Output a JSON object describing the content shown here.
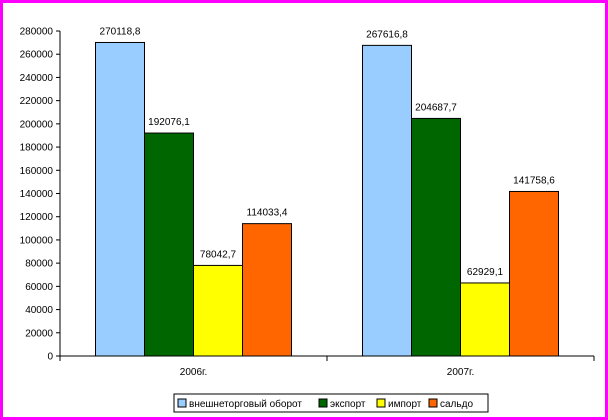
{
  "chart_data": {
    "type": "bar",
    "categories": [
      "2006г.",
      "2007г."
    ],
    "series": [
      {
        "name": "внешнеторговый оборот",
        "values": [
          270118.8,
          267616.8
        ],
        "labels": [
          "270118,8",
          "267616,8"
        ],
        "color": "#99ccff"
      },
      {
        "name": "экспорт",
        "values": [
          192076.1,
          204687.7
        ],
        "labels": [
          "192076,1",
          "204687,7"
        ],
        "color": "#006600"
      },
      {
        "name": "импорт",
        "values": [
          78042.7,
          62929.1
        ],
        "labels": [
          "78042,7",
          "62929,1"
        ],
        "color": "#ffff00"
      },
      {
        "name": "сальдо",
        "values": [
          114033.4,
          141758.6
        ],
        "labels": [
          "114033,4",
          "141758,6"
        ],
        "color": "#ff6600"
      }
    ],
    "ylim": [
      0,
      280000
    ],
    "yticks": [
      "0",
      "20000",
      "40000",
      "60000",
      "80000",
      "100000",
      "120000",
      "140000",
      "160000",
      "180000",
      "200000",
      "220000",
      "240000",
      "260000",
      "280000"
    ],
    "grid": false,
    "legend": "bottom"
  },
  "colors": {
    "frame": "#ff00ff"
  }
}
